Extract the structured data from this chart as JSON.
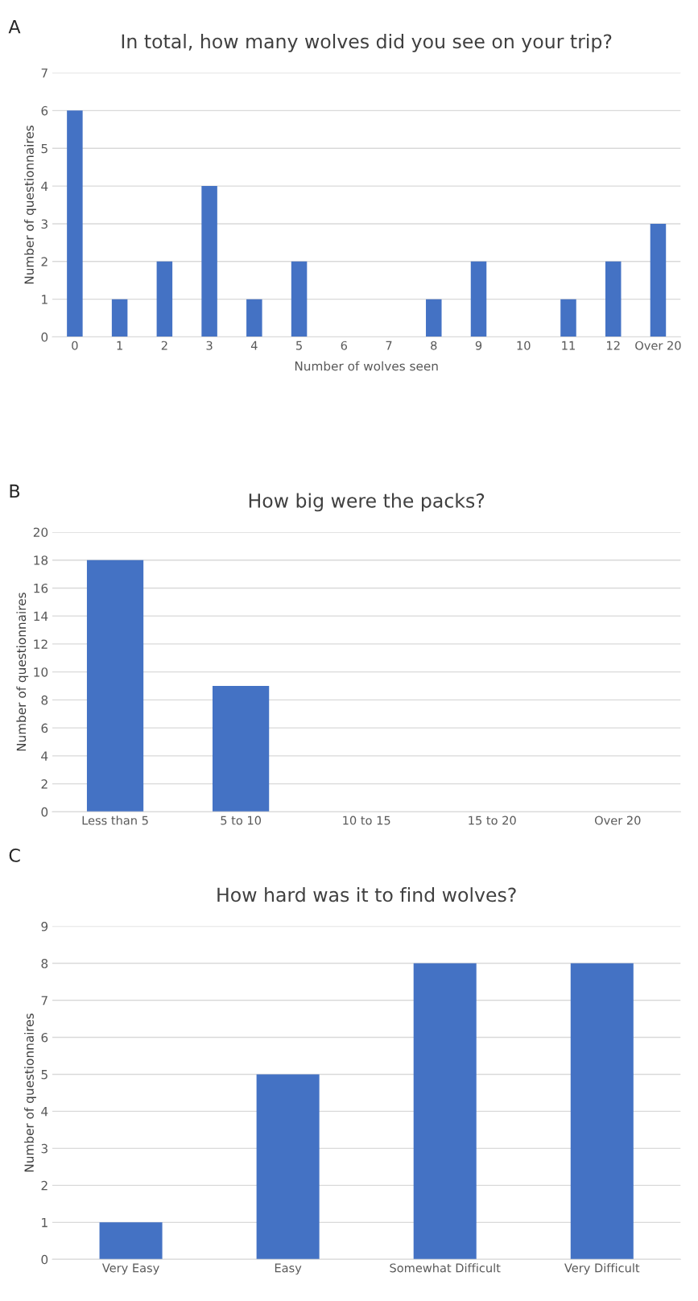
{
  "chart_data": [
    {
      "type": "bar",
      "title": "In total, how many wolves did you see on your trip?",
      "xlabel": "Number of wolves seen",
      "ylabel": "Number of questionnaires",
      "annotations": [
        "A"
      ],
      "categories": [
        "0",
        "1",
        "2",
        "3",
        "4",
        "5",
        "6",
        "7",
        "8",
        "9",
        "10",
        "11",
        "12",
        "Over 20"
      ],
      "values": [
        6,
        1,
        2,
        4,
        1,
        2,
        0,
        0,
        1,
        2,
        0,
        1,
        2,
        3
      ],
      "color": "#4472c4",
      "ylim": [
        0,
        7
      ],
      "yticks": [
        0,
        1,
        2,
        3,
        4,
        5,
        6,
        7
      ],
      "grid": "y"
    },
    {
      "type": "bar",
      "title": "How big were the packs?",
      "ylabel": "Number of questionnaires",
      "annotations": [
        "B"
      ],
      "categories": [
        "Less than 5",
        "5 to 10",
        "10 to 15",
        "15 to 20",
        "Over 20"
      ],
      "values": [
        18,
        9,
        0,
        0,
        0
      ],
      "color": "#4472c4",
      "ylim": [
        0,
        20
      ],
      "yticks": [
        0,
        2,
        4,
        6,
        8,
        10,
        12,
        14,
        16,
        18,
        20
      ],
      "grid": "y"
    },
    {
      "type": "bar",
      "title": "How hard was it to find wolves?",
      "ylabel": "Number of questionnaires",
      "annotations": [
        "C"
      ],
      "categories": [
        "Very Easy",
        "Easy",
        "Somewhat Difficult",
        "Very Difficult"
      ],
      "values": [
        1,
        5,
        8,
        8
      ],
      "color": "#4472c4",
      "ylim": [
        0,
        9
      ],
      "yticks": [
        0,
        1,
        2,
        3,
        4,
        5,
        6,
        7,
        8,
        9
      ],
      "grid": "y"
    }
  ]
}
